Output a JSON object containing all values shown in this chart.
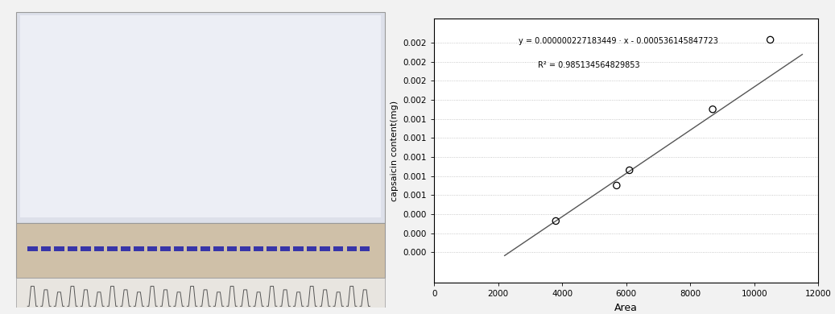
{
  "scatter_x": [
    3800,
    5700,
    6100,
    8700,
    10500
  ],
  "scatter_y": [
    0.000327,
    0.0007,
    0.00086,
    0.0015,
    0.00223
  ],
  "slope": 2.27183449e-07,
  "intercept": -0.000536145847723,
  "r_squared": 0.985134564829853,
  "equation_text": "y = 0.000000227183449 · x - 0.000536145847723",
  "r2_text": "R² = 0.985134564829853",
  "xlabel": "Area",
  "ylabel": "capsaicin content(mg)",
  "xlim": [
    0,
    12000
  ],
  "ylim": [
    -0.00032,
    0.00245
  ],
  "xticks": [
    0,
    2000,
    4000,
    6000,
    8000,
    10000,
    12000
  ],
  "yticks": [
    0.0,
    0.0002,
    0.0004,
    0.0006,
    0.0008,
    0.001,
    0.0012,
    0.0014,
    0.0016,
    0.0018,
    0.002,
    0.0022
  ],
  "line_color": "#555555",
  "scatter_color": "#000000",
  "grid_color": "#bbbbbb",
  "annotation_color": "#000000",
  "bg_color": "#ffffff",
  "dot_color": "#2222aa",
  "fig_width": 10.37,
  "fig_height": 3.9,
  "left_top_color": "#dde0ea",
  "left_top_inner_color": "#eaecf2",
  "left_beige_color": "#cfc0a8",
  "left_chrom_color": "#e8e5e0",
  "fig_bg_color": "#f2f2f2"
}
